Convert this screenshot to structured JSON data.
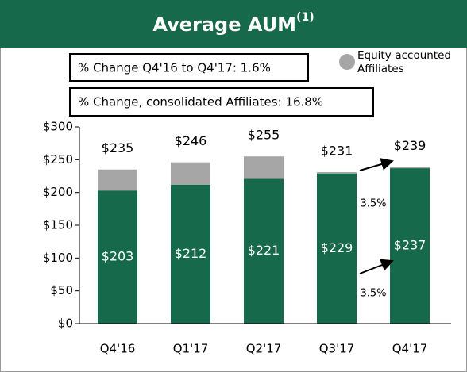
{
  "chart_data": {
    "type": "stacked_bar",
    "title": "Average AUM",
    "title_note": "(1)",
    "categories": [
      "Q4'16",
      "Q1'17",
      "Q2'17",
      "Q3'17",
      "Q4'17"
    ],
    "series": [
      {
        "color": "#16694b",
        "values": [
          203,
          212,
          221,
          229,
          237
        ],
        "value_labels": [
          "$203",
          "$212",
          "$221",
          "$229",
          "$237"
        ]
      },
      {
        "name": "Equity-accounted Affiliates",
        "color": "#a6a6a6",
        "values": [
          32,
          34,
          34,
          2,
          2
        ]
      }
    ],
    "totals": [
      235,
      246,
      255,
      231,
      239
    ],
    "total_labels": [
      "$235",
      "$246",
      "$255",
      "$231",
      "$239"
    ],
    "ylim": [
      0,
      300
    ],
    "yticks": [
      {
        "value": 0,
        "label": "$0"
      },
      {
        "value": 50,
        "label": "$50"
      },
      {
        "value": 100,
        "label": "$100"
      },
      {
        "value": 150,
        "label": "$150"
      },
      {
        "value": 200,
        "label": "$200"
      },
      {
        "value": 250,
        "label": "$250"
      },
      {
        "value": 300,
        "label": "$300"
      }
    ],
    "annotations": [
      "% Change Q4'16 to Q4'17: 1.6%",
      "% Change, consolidated Affiliates: 16.8%",
      "3.5%",
      "3.5%"
    ],
    "legend": "top-right"
  }
}
